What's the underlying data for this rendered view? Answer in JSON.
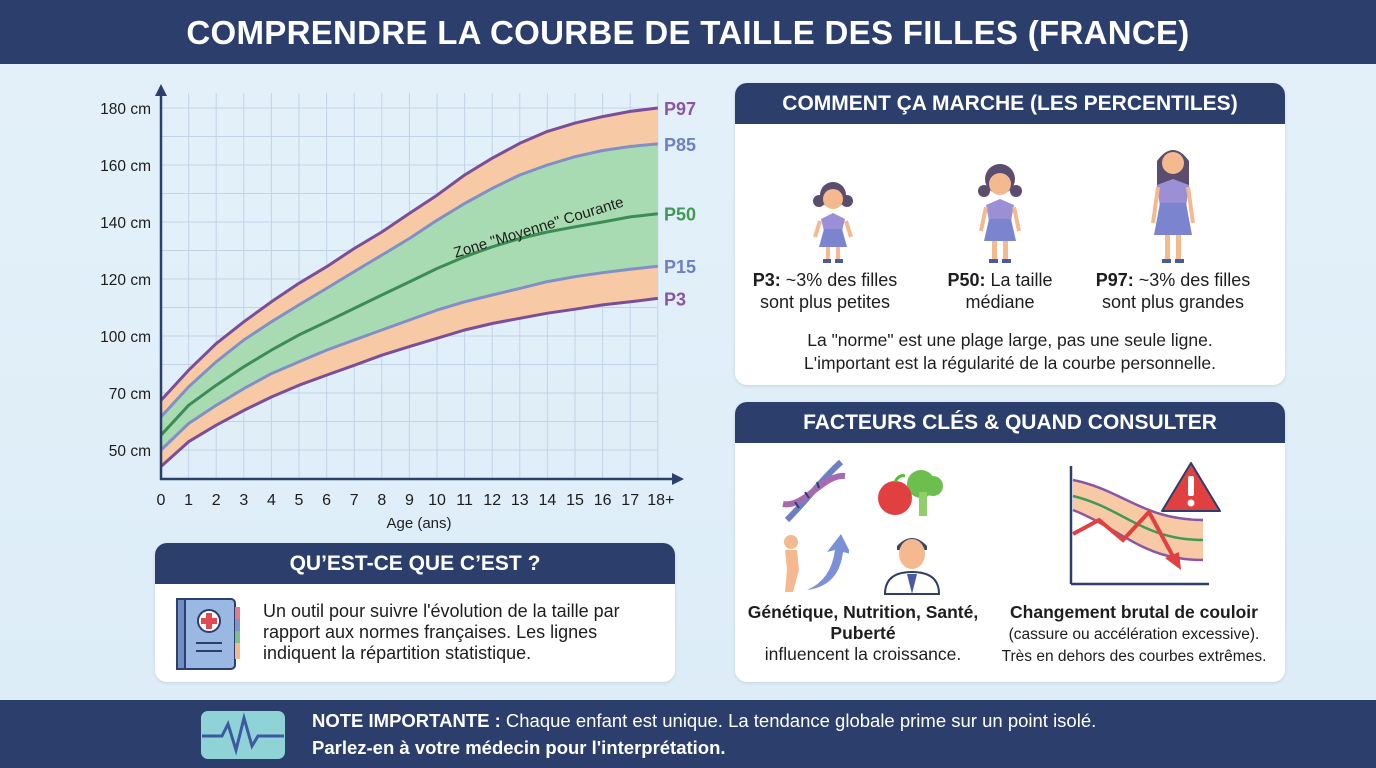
{
  "title": "COMPRENDRE LA COURBE DE TAILLE DES FILLES (FRANCE)",
  "chart_data": {
    "type": "line",
    "xlabel": "Age (ans)",
    "ylabel": "",
    "x_ticks": [
      "0",
      "1",
      "2",
      "3",
      "4",
      "5",
      "6",
      "7",
      "8",
      "9",
      "10",
      "11",
      "12",
      "13",
      "14",
      "15",
      "16",
      "17",
      "18+"
    ],
    "x": [
      0,
      1,
      2,
      3,
      4,
      5,
      6,
      7,
      8,
      9,
      10,
      11,
      12,
      13,
      14,
      15,
      16,
      17,
      18
    ],
    "y_ticks": [
      50,
      70,
      100,
      120,
      140,
      160,
      180
    ],
    "y_tick_labels": [
      "50 cm",
      "70 cm",
      "100 cm",
      "120 cm",
      "140 cm",
      "160 cm",
      "180 cm"
    ],
    "y_scale": "non-uniform (evenly spaced tick labels)",
    "grid": true,
    "annotation": "Zone \"Moyenne\" Courante",
    "bands": [
      {
        "between": [
          "P85",
          "P97"
        ],
        "color": "#f8c9a5"
      },
      {
        "between": [
          "P15",
          "P85"
        ],
        "color": "#a9dbb2"
      },
      {
        "between": [
          "P3",
          "P15"
        ],
        "color": "#f8c9a5"
      }
    ],
    "series": [
      {
        "name": "P97",
        "color": "#7a4e98",
        "label_color": "#8a56a3",
        "values": [
          67.4,
          82,
          96,
          105,
          112,
          118.5,
          124.3,
          130.7,
          136.5,
          143,
          149.4,
          156.5,
          162.4,
          167.6,
          171.8,
          174.7,
          177,
          178.8,
          180
        ]
      },
      {
        "name": "P85",
        "color": "#8090c6",
        "label_color": "#6f80c2",
        "values": [
          61.6,
          73.2,
          86.4,
          97.9,
          105,
          110.9,
          116.7,
          122.6,
          128.4,
          134.2,
          140.6,
          146.5,
          151.8,
          156.5,
          160,
          162.9,
          165.1,
          166.5,
          167.4
        ]
      },
      {
        "name": "P50",
        "color": "#3c8c56",
        "label_color": "#3e9a55",
        "values": [
          55.2,
          65.7,
          74.1,
          83.8,
          92.6,
          100.4,
          105,
          109.7,
          114.4,
          119,
          123.7,
          127.8,
          131.3,
          134.2,
          136.5,
          138.3,
          140,
          141.8,
          142.9
        ]
      },
      {
        "name": "P15",
        "color": "#8090c6",
        "label_color": "#6f80c2",
        "values": [
          50,
          59.3,
          65.7,
          72.3,
          80.2,
          86.4,
          92.6,
          97.9,
          102.1,
          105.6,
          109.1,
          112,
          114.4,
          116.7,
          119.1,
          120.8,
          122.2,
          123.4,
          124.5
        ]
      },
      {
        "name": "P3",
        "color": "#7a4e98",
        "label_color": "#8a56a3",
        "values": [
          44.2,
          52.9,
          58.7,
          63.9,
          68.6,
          74.1,
          79.4,
          84.6,
          89.9,
          94.4,
          98.8,
          102.1,
          104.4,
          106.2,
          108,
          109.4,
          110.9,
          112,
          113.2
        ]
      }
    ]
  },
  "what": {
    "title": "QU’EST-CE QUE C’EST ?",
    "icon": "medical-book-icon",
    "text": "Un outil pour suivre l'évolution de la taille par rapport aux normes françaises. Les lignes indiquent la répartition statistique."
  },
  "how": {
    "title": "COMMENT ÇA MARCHE (LES PERCENTILES)",
    "figures": [
      {
        "bold": "P3:",
        "text": " ~3% des filles sont plus petites"
      },
      {
        "bold": "P50:",
        "text": " La taille médiane"
      },
      {
        "bold": "P97:",
        "text": " ~3% des filles sont plus grandes"
      }
    ],
    "note1": "La \"norme\" est une plage large, pas une seule ligne.",
    "note2": "L'important est la régularité de la courbe personnelle."
  },
  "factors": {
    "title": "FACTEURS CLÉS & QUAND CONSULTER",
    "left_bold": "Génétique, Nutrition, Santé, Puberté",
    "left_text": "influencent la croissance.",
    "right_bold": "Changement brutal de couloir",
    "right_text1": "(cassure ou accélération excessive).",
    "right_text2": "Très en dehors des courbes extrêmes.",
    "icons": [
      "dna-icon",
      "apple-broccoli-icon",
      "growth-arrow-icon",
      "doctor-icon",
      "warning-icon",
      "growth-chart-drop-icon"
    ]
  },
  "footer": {
    "icon": "heartbeat-icon",
    "bold": "NOTE IMPORTANTE :",
    "text": " Chaque enfant est unique. La tendance globale prime sur un point isolé.",
    "line2": "Parlez-en à votre médecin pour l'interprétation."
  }
}
